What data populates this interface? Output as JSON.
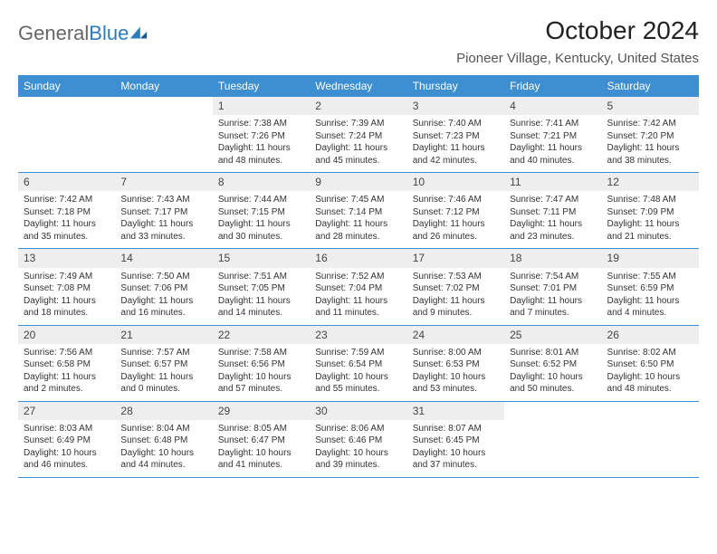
{
  "logo": {
    "text_general": "General",
    "text_blue": "Blue"
  },
  "title": "October 2024",
  "location": "Pioneer Village, Kentucky, United States",
  "colors": {
    "header_bg": "#3d8fd1",
    "header_text": "#ffffff",
    "daynum_bg": "#eeeeee",
    "rule": "#3d8fd1",
    "body_text": "#333333",
    "logo_gray": "#666666",
    "logo_blue": "#2b7bbf"
  },
  "day_names": [
    "Sunday",
    "Monday",
    "Tuesday",
    "Wednesday",
    "Thursday",
    "Friday",
    "Saturday"
  ],
  "weeks": [
    [
      {
        "empty": true
      },
      {
        "empty": true
      },
      {
        "day": "1",
        "sunrise": "Sunrise: 7:38 AM",
        "sunset": "Sunset: 7:26 PM",
        "daylight1": "Daylight: 11 hours",
        "daylight2": "and 48 minutes."
      },
      {
        "day": "2",
        "sunrise": "Sunrise: 7:39 AM",
        "sunset": "Sunset: 7:24 PM",
        "daylight1": "Daylight: 11 hours",
        "daylight2": "and 45 minutes."
      },
      {
        "day": "3",
        "sunrise": "Sunrise: 7:40 AM",
        "sunset": "Sunset: 7:23 PM",
        "daylight1": "Daylight: 11 hours",
        "daylight2": "and 42 minutes."
      },
      {
        "day": "4",
        "sunrise": "Sunrise: 7:41 AM",
        "sunset": "Sunset: 7:21 PM",
        "daylight1": "Daylight: 11 hours",
        "daylight2": "and 40 minutes."
      },
      {
        "day": "5",
        "sunrise": "Sunrise: 7:42 AM",
        "sunset": "Sunset: 7:20 PM",
        "daylight1": "Daylight: 11 hours",
        "daylight2": "and 38 minutes."
      }
    ],
    [
      {
        "day": "6",
        "sunrise": "Sunrise: 7:42 AM",
        "sunset": "Sunset: 7:18 PM",
        "daylight1": "Daylight: 11 hours",
        "daylight2": "and 35 minutes."
      },
      {
        "day": "7",
        "sunrise": "Sunrise: 7:43 AM",
        "sunset": "Sunset: 7:17 PM",
        "daylight1": "Daylight: 11 hours",
        "daylight2": "and 33 minutes."
      },
      {
        "day": "8",
        "sunrise": "Sunrise: 7:44 AM",
        "sunset": "Sunset: 7:15 PM",
        "daylight1": "Daylight: 11 hours",
        "daylight2": "and 30 minutes."
      },
      {
        "day": "9",
        "sunrise": "Sunrise: 7:45 AM",
        "sunset": "Sunset: 7:14 PM",
        "daylight1": "Daylight: 11 hours",
        "daylight2": "and 28 minutes."
      },
      {
        "day": "10",
        "sunrise": "Sunrise: 7:46 AM",
        "sunset": "Sunset: 7:12 PM",
        "daylight1": "Daylight: 11 hours",
        "daylight2": "and 26 minutes."
      },
      {
        "day": "11",
        "sunrise": "Sunrise: 7:47 AM",
        "sunset": "Sunset: 7:11 PM",
        "daylight1": "Daylight: 11 hours",
        "daylight2": "and 23 minutes."
      },
      {
        "day": "12",
        "sunrise": "Sunrise: 7:48 AM",
        "sunset": "Sunset: 7:09 PM",
        "daylight1": "Daylight: 11 hours",
        "daylight2": "and 21 minutes."
      }
    ],
    [
      {
        "day": "13",
        "sunrise": "Sunrise: 7:49 AM",
        "sunset": "Sunset: 7:08 PM",
        "daylight1": "Daylight: 11 hours",
        "daylight2": "and 18 minutes."
      },
      {
        "day": "14",
        "sunrise": "Sunrise: 7:50 AM",
        "sunset": "Sunset: 7:06 PM",
        "daylight1": "Daylight: 11 hours",
        "daylight2": "and 16 minutes."
      },
      {
        "day": "15",
        "sunrise": "Sunrise: 7:51 AM",
        "sunset": "Sunset: 7:05 PM",
        "daylight1": "Daylight: 11 hours",
        "daylight2": "and 14 minutes."
      },
      {
        "day": "16",
        "sunrise": "Sunrise: 7:52 AM",
        "sunset": "Sunset: 7:04 PM",
        "daylight1": "Daylight: 11 hours",
        "daylight2": "and 11 minutes."
      },
      {
        "day": "17",
        "sunrise": "Sunrise: 7:53 AM",
        "sunset": "Sunset: 7:02 PM",
        "daylight1": "Daylight: 11 hours",
        "daylight2": "and 9 minutes."
      },
      {
        "day": "18",
        "sunrise": "Sunrise: 7:54 AM",
        "sunset": "Sunset: 7:01 PM",
        "daylight1": "Daylight: 11 hours",
        "daylight2": "and 7 minutes."
      },
      {
        "day": "19",
        "sunrise": "Sunrise: 7:55 AM",
        "sunset": "Sunset: 6:59 PM",
        "daylight1": "Daylight: 11 hours",
        "daylight2": "and 4 minutes."
      }
    ],
    [
      {
        "day": "20",
        "sunrise": "Sunrise: 7:56 AM",
        "sunset": "Sunset: 6:58 PM",
        "daylight1": "Daylight: 11 hours",
        "daylight2": "and 2 minutes."
      },
      {
        "day": "21",
        "sunrise": "Sunrise: 7:57 AM",
        "sunset": "Sunset: 6:57 PM",
        "daylight1": "Daylight: 11 hours",
        "daylight2": "and 0 minutes."
      },
      {
        "day": "22",
        "sunrise": "Sunrise: 7:58 AM",
        "sunset": "Sunset: 6:56 PM",
        "daylight1": "Daylight: 10 hours",
        "daylight2": "and 57 minutes."
      },
      {
        "day": "23",
        "sunrise": "Sunrise: 7:59 AM",
        "sunset": "Sunset: 6:54 PM",
        "daylight1": "Daylight: 10 hours",
        "daylight2": "and 55 minutes."
      },
      {
        "day": "24",
        "sunrise": "Sunrise: 8:00 AM",
        "sunset": "Sunset: 6:53 PM",
        "daylight1": "Daylight: 10 hours",
        "daylight2": "and 53 minutes."
      },
      {
        "day": "25",
        "sunrise": "Sunrise: 8:01 AM",
        "sunset": "Sunset: 6:52 PM",
        "daylight1": "Daylight: 10 hours",
        "daylight2": "and 50 minutes."
      },
      {
        "day": "26",
        "sunrise": "Sunrise: 8:02 AM",
        "sunset": "Sunset: 6:50 PM",
        "daylight1": "Daylight: 10 hours",
        "daylight2": "and 48 minutes."
      }
    ],
    [
      {
        "day": "27",
        "sunrise": "Sunrise: 8:03 AM",
        "sunset": "Sunset: 6:49 PM",
        "daylight1": "Daylight: 10 hours",
        "daylight2": "and 46 minutes."
      },
      {
        "day": "28",
        "sunrise": "Sunrise: 8:04 AM",
        "sunset": "Sunset: 6:48 PM",
        "daylight1": "Daylight: 10 hours",
        "daylight2": "and 44 minutes."
      },
      {
        "day": "29",
        "sunrise": "Sunrise: 8:05 AM",
        "sunset": "Sunset: 6:47 PM",
        "daylight1": "Daylight: 10 hours",
        "daylight2": "and 41 minutes."
      },
      {
        "day": "30",
        "sunrise": "Sunrise: 8:06 AM",
        "sunset": "Sunset: 6:46 PM",
        "daylight1": "Daylight: 10 hours",
        "daylight2": "and 39 minutes."
      },
      {
        "day": "31",
        "sunrise": "Sunrise: 8:07 AM",
        "sunset": "Sunset: 6:45 PM",
        "daylight1": "Daylight: 10 hours",
        "daylight2": "and 37 minutes."
      },
      {
        "empty": true
      },
      {
        "empty": true
      }
    ]
  ]
}
